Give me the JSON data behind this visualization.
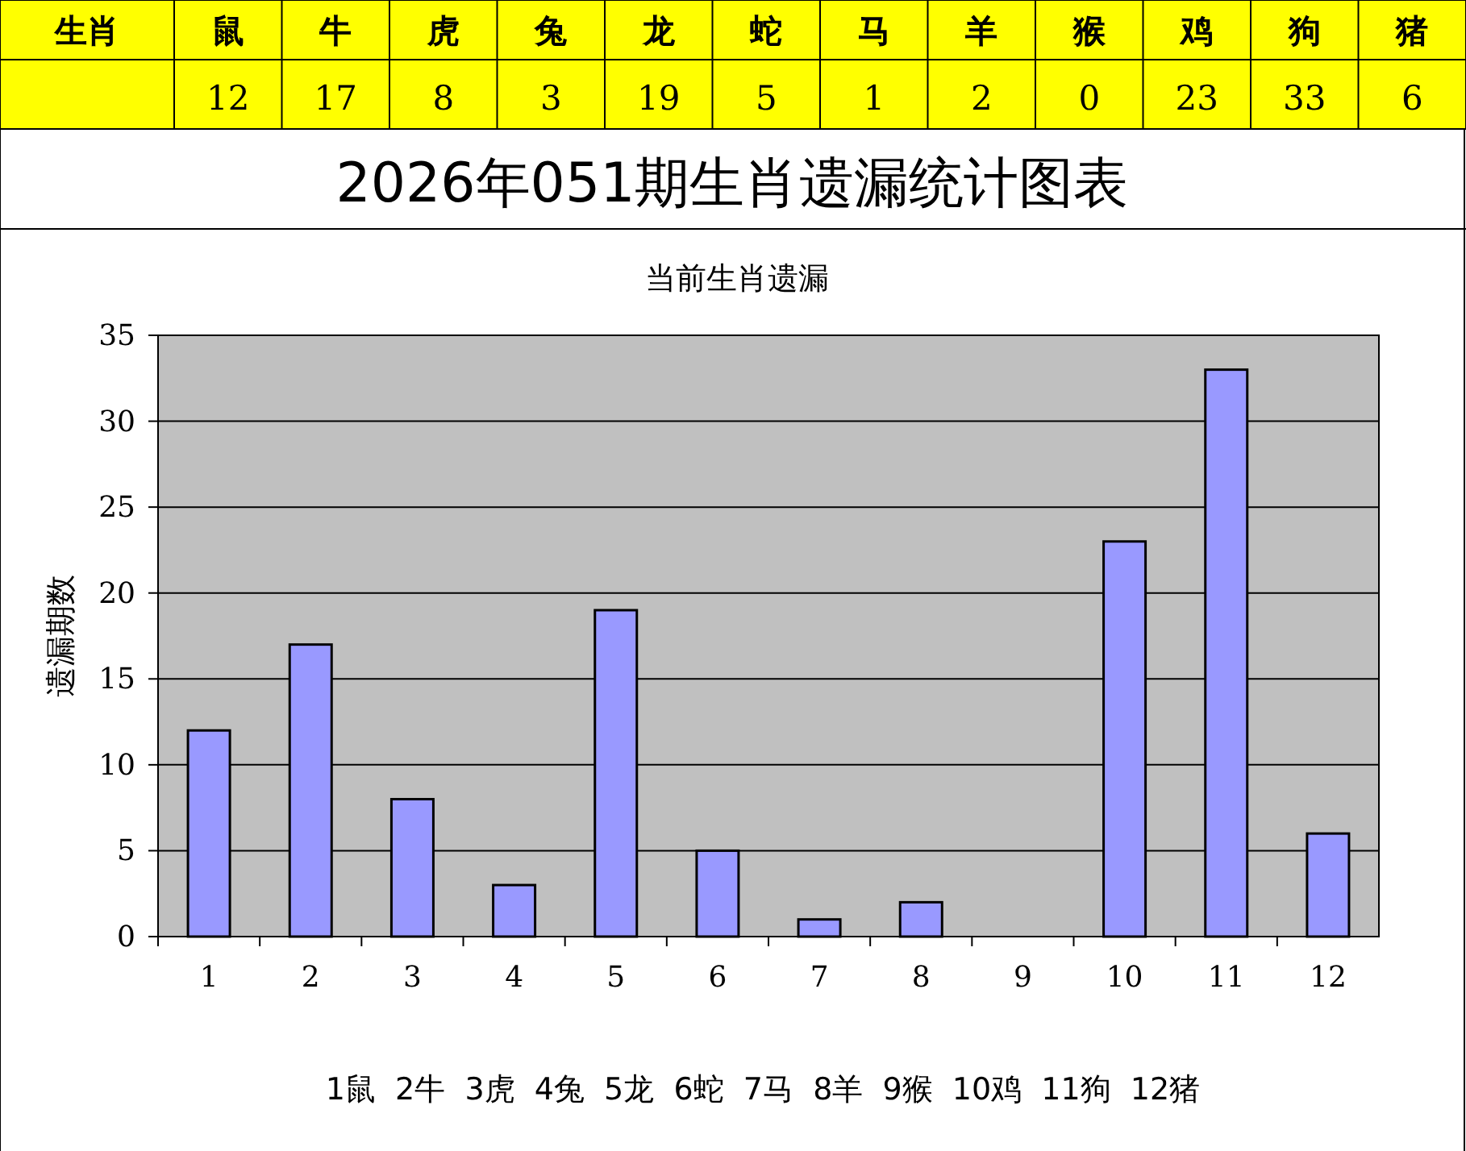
{
  "chart_data": [
    {
      "type": "other",
      "annotations": [
        "生肖"
      ],
      "categories": [
        "鼠",
        "牛",
        "虎",
        "兔",
        "龙",
        "蛇",
        "马",
        "羊",
        "猴",
        "鸡",
        "狗",
        "猪"
      ],
      "values": [
        12,
        17,
        8,
        3,
        19,
        5,
        1,
        2,
        0,
        23,
        33,
        6
      ],
      "data_labels": true,
      "color": "#ffff00"
    },
    {
      "type": "bar",
      "title": "2026年051期生肖遗漏统计图表",
      "subtitle": "当前生肖遗漏",
      "ylabel": "遗漏期数",
      "categories": [
        "1",
        "2",
        "3",
        "4",
        "5",
        "6",
        "7",
        "8",
        "9",
        "10",
        "11",
        "12"
      ],
      "series": [
        {
          "color": "#9999ff",
          "values": [
            12,
            17,
            8,
            3,
            19,
            5,
            1,
            2,
            0,
            23,
            33,
            6
          ]
        }
      ],
      "ylim": [
        0,
        35
      ],
      "yticks": [
        0,
        5,
        10,
        15,
        20,
        25,
        30,
        35
      ],
      "grid": "y",
      "annotations": [
        "1鼠  2牛  3虎  4兔  5龙  6蛇  7马  8羊  9猴  10鸡  11狗  12猪"
      ]
    }
  ]
}
